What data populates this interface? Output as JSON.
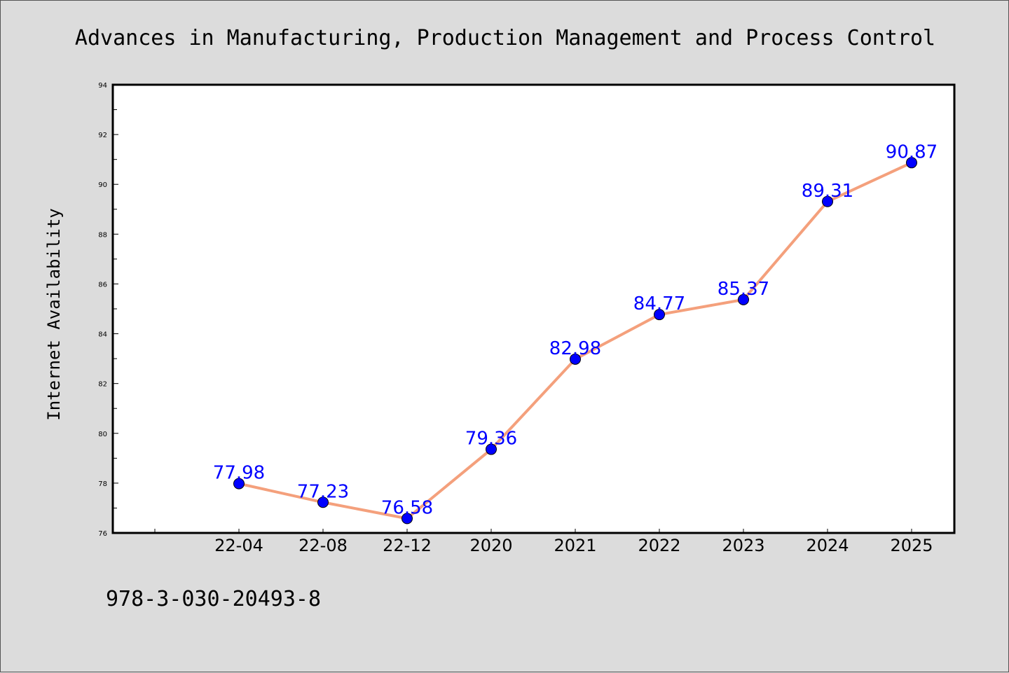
{
  "footer_text": "978-3-030-20493-8",
  "colors": {
    "background": "#dcdcdc",
    "plot_area": "#ffffff",
    "line": "#f4a07c",
    "marker": "#0000ff",
    "data_label": "#0000ff"
  },
  "chart_data": {
    "type": "line",
    "title": "Advances in Manufacturing, Production Management and Process Control",
    "xlabel": "",
    "ylabel": "Internet Availability",
    "categories": [
      "22-04",
      "22-08",
      "22-12",
      "2020",
      "2021",
      "2022",
      "2023",
      "2024",
      "2025"
    ],
    "series": [
      {
        "values": [
          77.98,
          77.23,
          76.58,
          79.36,
          82.98,
          84.77,
          85.37,
          89.31,
          90.87
        ],
        "data_labels": [
          "77.98",
          "77.23",
          "76.58",
          "79.36",
          "82.98",
          "84.77",
          "85.37",
          "89.31",
          "90.87"
        ]
      }
    ],
    "ylim": [
      76,
      94
    ],
    "yticks": [
      "76",
      "78",
      "80",
      "82",
      "84",
      "86",
      "88",
      "90",
      "92",
      "94"
    ],
    "grid": false,
    "legend": "none"
  }
}
